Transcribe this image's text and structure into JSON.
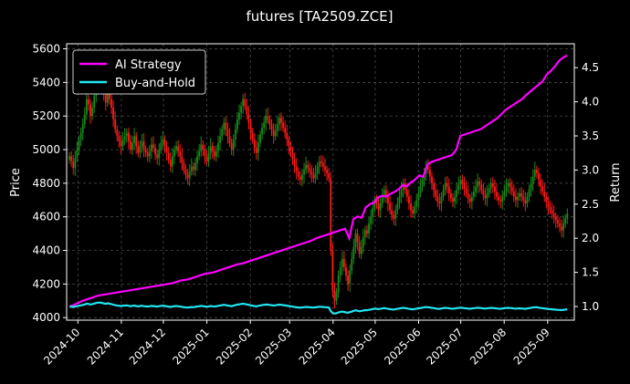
{
  "chart_data": {
    "type": "candlestick+line",
    "title": "futures [TA2509.ZCE]",
    "ylabel_left": "Price",
    "ylabel_right": "Return",
    "ylim_left": [
      3985,
      5630
    ],
    "ylim_right": [
      0.8,
      4.85
    ],
    "xlim": [
      "2024-09-23",
      "2025-09-20"
    ],
    "yticks_left": [
      "4000",
      "4200",
      "4400",
      "4600",
      "4800",
      "5000",
      "5200",
      "5400",
      "5600"
    ],
    "yticks_right": [
      "1.0",
      "1.5",
      "2.0",
      "2.5",
      "3.0",
      "3.5",
      "4.0",
      "4.5"
    ],
    "xticks": [
      "2024-10",
      "2024-11",
      "2024-12",
      "2025-01",
      "2025-02",
      "2025-03",
      "2025-04",
      "2025-05",
      "2025-06",
      "2025-07",
      "2025-08",
      "2025-09"
    ],
    "grid": true,
    "legend_placement": "top-left",
    "colors": {
      "up": "#1a8a1a",
      "down": "#ff1a1a",
      "ai": "#ff00ff",
      "bh": "#22e5f0",
      "grid": "#555555"
    },
    "candles_close": [
      4960,
      4930,
      4890,
      4950,
      5000,
      5060,
      5100,
      5150,
      5210,
      5300,
      5270,
      5200,
      5250,
      5320,
      5380,
      5430,
      5440,
      5400,
      5330,
      5280,
      5350,
      5300,
      5250,
      5180,
      5120,
      5080,
      5050,
      5020,
      5060,
      5080,
      5100,
      5050,
      5000,
      5040,
      5080,
      5020,
      4980,
      5020,
      5050,
      5000,
      4980,
      4960,
      4990,
      5030,
      5010,
      4970,
      4950,
      5000,
      5040,
      5060,
      5020,
      4980,
      4940,
      4900,
      4960,
      5000,
      5020,
      4990,
      4960,
      4920,
      4880,
      4850,
      4830,
      4870,
      4900,
      4880,
      4920,
      4960,
      4990,
      5030,
      5000,
      4960,
      4930,
      4980,
      5020,
      4990,
      4960,
      4990,
      5040,
      5080,
      5120,
      5160,
      5120,
      5080,
      5040,
      5000,
      5060,
      5120,
      5180,
      5220,
      5260,
      5300,
      5260,
      5210,
      5160,
      5100,
      5060,
      5010,
      4980,
      5040,
      5090,
      5130,
      5160,
      5200,
      5180,
      5150,
      5120,
      5080,
      5110,
      5150,
      5190,
      5160,
      5130,
      5100,
      5060,
      5020,
      4980,
      4940,
      4900,
      4870,
      4840,
      4820,
      4850,
      4880,
      4910,
      4890,
      4870,
      4850,
      4830,
      4860,
      4900,
      4930,
      4920,
      4900,
      4880,
      4860,
      4830,
      4400,
      4160,
      4100,
      4150,
      4250,
      4300,
      4350,
      4300,
      4250,
      4200,
      4280,
      4350,
      4420,
      4500,
      4450,
      4380,
      4420,
      4480,
      4520,
      4500,
      4560,
      4600,
      4650,
      4700,
      4680,
      4640,
      4680,
      4720,
      4760,
      4720,
      4680,
      4640,
      4610,
      4590,
      4640,
      4680,
      4720,
      4760,
      4800,
      4760,
      4720,
      4680,
      4640,
      4620,
      4660,
      4700,
      4740,
      4780,
      4820,
      4860,
      4900,
      4880,
      4840,
      4800,
      4760,
      4720,
      4690,
      4680,
      4720,
      4760,
      4800,
      4780,
      4740,
      4710,
      4690,
      4720,
      4760,
      4790,
      4820,
      4800,
      4770,
      4740,
      4710,
      4690,
      4720,
      4750,
      4780,
      4810,
      4790,
      4760,
      4730,
      4710,
      4740,
      4770,
      4800,
      4780,
      4750,
      4720,
      4700,
      4690,
      4720,
      4750,
      4780,
      4800,
      4780,
      4750,
      4720,
      4700,
      4720,
      4740,
      4720,
      4700,
      4680,
      4720,
      4760,
      4800,
      4840,
      4880,
      4860,
      4820,
      4780,
      4750,
      4720,
      4690,
      4660,
      4640,
      4620,
      4600,
      4580,
      4560,
      4540,
      4520,
      4560,
      4590,
      4620
    ],
    "ai_return": [
      1.0,
      1.02,
      1.05,
      1.08,
      1.1,
      1.12,
      1.14,
      1.16,
      1.17,
      1.18,
      1.19,
      1.2,
      1.21,
      1.22,
      1.23,
      1.24,
      1.25,
      1.26,
      1.27,
      1.28,
      1.29,
      1.3,
      1.31,
      1.32,
      1.33,
      1.34,
      1.36,
      1.38,
      1.39,
      1.4,
      1.42,
      1.44,
      1.46,
      1.48,
      1.49,
      1.5,
      1.52,
      1.54,
      1.56,
      1.58,
      1.6,
      1.62,
      1.63,
      1.65,
      1.67,
      1.69,
      1.71,
      1.73,
      1.75,
      1.77,
      1.79,
      1.81,
      1.83,
      1.85,
      1.87,
      1.89,
      1.91,
      1.93,
      1.95,
      1.97,
      2.0,
      2.02,
      2.04,
      2.06,
      2.08,
      2.1,
      2.12,
      2.14,
      2.0,
      2.28,
      2.32,
      2.3,
      2.45,
      2.5,
      2.52,
      2.6,
      2.62,
      2.61,
      2.65,
      2.68,
      2.72,
      2.78,
      2.76,
      2.82,
      2.86,
      2.92,
      2.9,
      3.08,
      3.12,
      3.14,
      3.16,
      3.18,
      3.2,
      3.22,
      3.3,
      3.5,
      3.52,
      3.54,
      3.56,
      3.58,
      3.6,
      3.64,
      3.68,
      3.72,
      3.76,
      3.82,
      3.88,
      3.92,
      3.96,
      4.0,
      4.04,
      4.1,
      4.15,
      4.2,
      4.25,
      4.3,
      4.4,
      4.45,
      4.52,
      4.6,
      4.65,
      4.68
    ]
  },
  "legend": {
    "ai_label": "AI Strategy",
    "bh_label": "Buy-and-Hold"
  }
}
